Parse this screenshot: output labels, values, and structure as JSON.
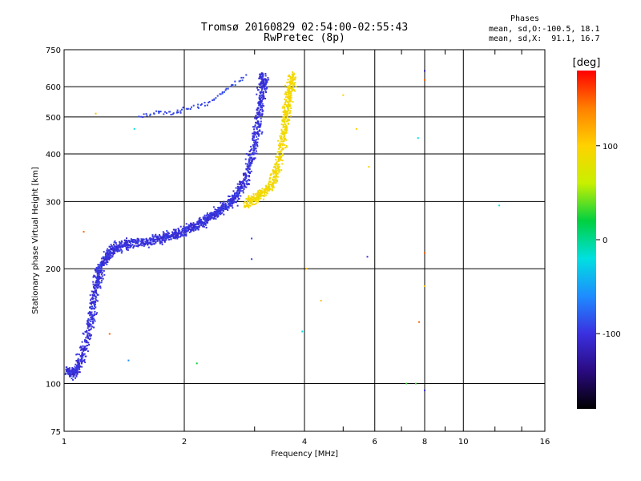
{
  "header": {
    "title_line1": "Tromsø 20160829 02:54:00-02:55:43",
    "title_line2": "RwPretec (8p)"
  },
  "phases_box": {
    "heading": "Phases",
    "line_o": "mean, sd,O:-100.5, 18.1",
    "line_x": "mean, sd,X:  91.1, 16.7"
  },
  "chart_data": {
    "type": "scatter",
    "title": "Tromsø 20160829 02:54:00-02:55:43",
    "subtitle": "RwPretec (8p)",
    "xlabel": "Frequency [MHz]",
    "ylabel": "Stationary phase Virtual Height [km]",
    "xscale": "log",
    "yscale": "log",
    "xlim": [
      1,
      16
    ],
    "ylim": [
      75,
      750
    ],
    "x_ticks": [
      1,
      2,
      4,
      6,
      8,
      10,
      16
    ],
    "y_ticks": [
      75,
      100,
      200,
      300,
      400,
      500,
      600,
      750
    ],
    "grid": true,
    "colorbar": {
      "label": "[deg]",
      "range": [
        -180,
        180
      ],
      "ticks": [
        100,
        0,
        -100
      ],
      "colormap": [
        "#000000",
        "#2a0a80",
        "#3a30e0",
        "#1e8cff",
        "#00e0e0",
        "#00d040",
        "#c8f000",
        "#ffd200",
        "#ff8000",
        "#ff0000"
      ]
    },
    "series": [
      {
        "mode": "O",
        "phase_mean": -100.5,
        "phase_sd": 18.1,
        "trace": [
          [
            1.02,
            108
          ],
          [
            1.05,
            106
          ],
          [
            1.08,
            110
          ],
          [
            1.12,
            122
          ],
          [
            1.15,
            140
          ],
          [
            1.18,
            158
          ],
          [
            1.2,
            178
          ],
          [
            1.22,
            192
          ],
          [
            1.25,
            205
          ],
          [
            1.28,
            215
          ],
          [
            1.32,
            224
          ],
          [
            1.38,
            229
          ],
          [
            1.45,
            232
          ],
          [
            1.55,
            234
          ],
          [
            1.65,
            236
          ],
          [
            1.75,
            240
          ],
          [
            1.85,
            244
          ],
          [
            1.95,
            248
          ],
          [
            2.05,
            254
          ],
          [
            2.15,
            260
          ],
          [
            2.25,
            267
          ],
          [
            2.35,
            275
          ],
          [
            2.45,
            283
          ],
          [
            2.55,
            292
          ],
          [
            2.65,
            303
          ],
          [
            2.75,
            320
          ],
          [
            2.85,
            345
          ],
          [
            2.95,
            390
          ],
          [
            3.02,
            440
          ],
          [
            3.08,
            500
          ],
          [
            3.12,
            560
          ],
          [
            3.15,
            610
          ],
          [
            3.17,
            640
          ]
        ],
        "upper_trace": [
          [
            1.55,
            500
          ],
          [
            1.7,
            515
          ],
          [
            1.85,
            510
          ],
          [
            2.0,
            520
          ],
          [
            2.2,
            535
          ],
          [
            2.4,
            560
          ],
          [
            2.6,
            600
          ],
          [
            2.85,
            640
          ]
        ]
      },
      {
        "mode": "X",
        "phase_mean": 91.1,
        "phase_sd": 16.7,
        "trace": [
          [
            2.85,
            295
          ],
          [
            3.0,
            305
          ],
          [
            3.15,
            315
          ],
          [
            3.3,
            330
          ],
          [
            3.4,
            360
          ],
          [
            3.48,
            400
          ],
          [
            3.55,
            450
          ],
          [
            3.6,
            500
          ],
          [
            3.65,
            550
          ],
          [
            3.7,
            600
          ],
          [
            3.72,
            640
          ]
        ]
      }
    ],
    "scattered_points": [
      {
        "x": 1.12,
        "y": 250,
        "phase": 150
      },
      {
        "x": 1.2,
        "y": 510,
        "phase": 110
      },
      {
        "x": 1.3,
        "y": 135,
        "phase": 150
      },
      {
        "x": 1.45,
        "y": 115,
        "phase": -60
      },
      {
        "x": 1.5,
        "y": 465,
        "phase": -20
      },
      {
        "x": 2.15,
        "y": 113,
        "phase": 20
      },
      {
        "x": 2.95,
        "y": 240,
        "phase": -90
      },
      {
        "x": 2.95,
        "y": 212,
        "phase": -90
      },
      {
        "x": 3.95,
        "y": 137,
        "phase": -20
      },
      {
        "x": 4.05,
        "y": 200,
        "phase": 110
      },
      {
        "x": 4.4,
        "y": 165,
        "phase": 110
      },
      {
        "x": 5.0,
        "y": 570,
        "phase": 100
      },
      {
        "x": 5.4,
        "y": 465,
        "phase": 100
      },
      {
        "x": 5.75,
        "y": 215,
        "phase": -100
      },
      {
        "x": 5.8,
        "y": 370,
        "phase": 100
      },
      {
        "x": 7.2,
        "y": 100,
        "phase": 30
      },
      {
        "x": 7.6,
        "y": 100,
        "phase": 30
      },
      {
        "x": 7.7,
        "y": 440,
        "phase": -20
      },
      {
        "x": 7.75,
        "y": 145,
        "phase": 150
      },
      {
        "x": 8.0,
        "y": 660,
        "phase": -120
      },
      {
        "x": 8.0,
        "y": 625,
        "phase": 150
      },
      {
        "x": 8.0,
        "y": 220,
        "phase": 150
      },
      {
        "x": 8.0,
        "y": 180,
        "phase": 110
      },
      {
        "x": 8.0,
        "y": 96,
        "phase": -100
      },
      {
        "x": 12.3,
        "y": 293,
        "phase": -20
      }
    ]
  }
}
